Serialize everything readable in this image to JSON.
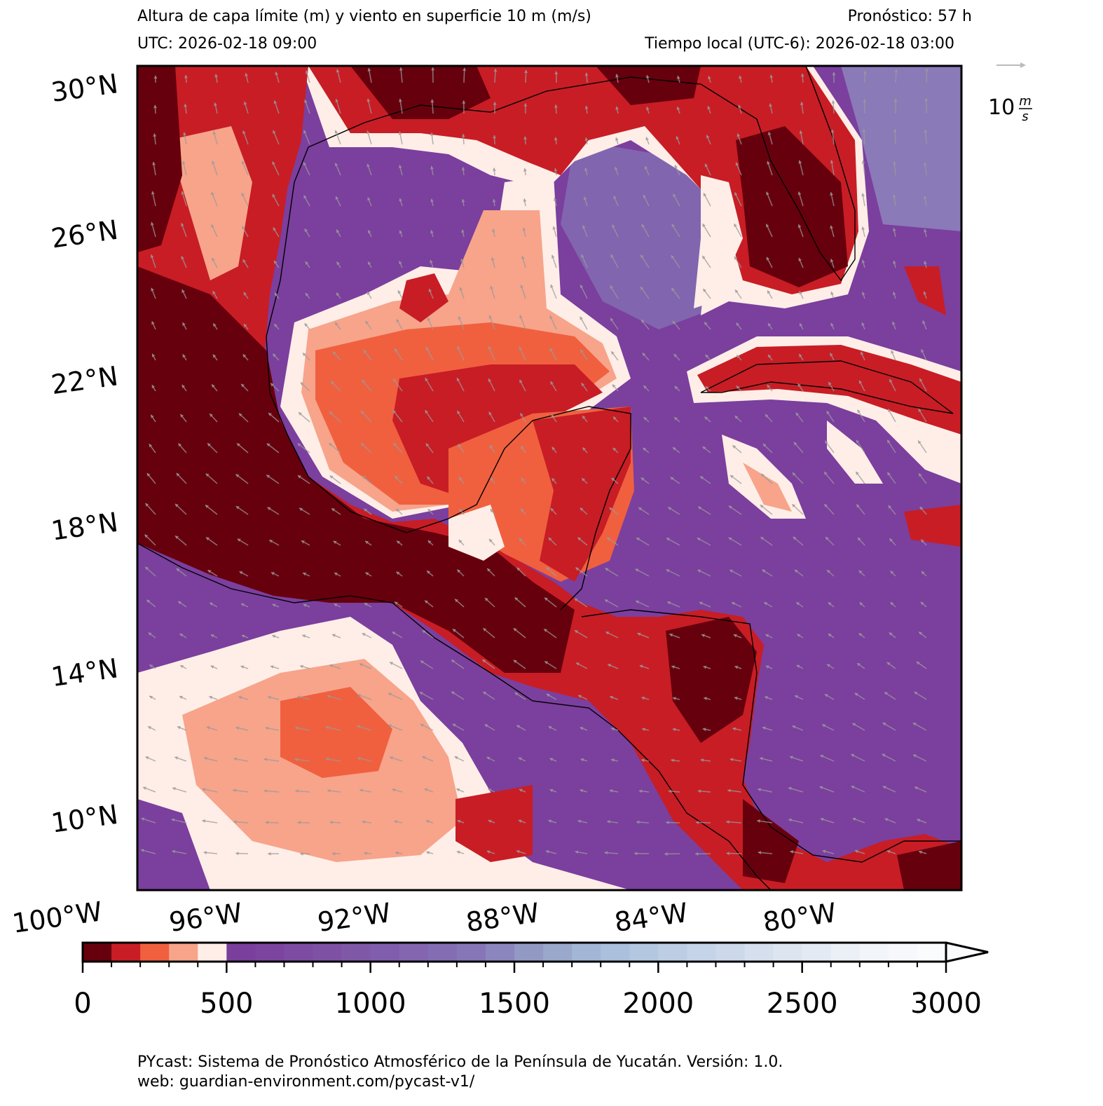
{
  "header": {
    "title": "Altura de capa límite (m) y viento en superficie 10 m (m/s)",
    "forecast": "Pronóstico: 57 h",
    "utc": "UTC:  2026-02-18 09:00",
    "local": "Tiempo local (UTC-6): 2026-02-18 03:00"
  },
  "map": {
    "lat_range": [
      7.9,
      30.46
    ],
    "lon_range": [
      -98.9,
      -76.7
    ],
    "lat_ticks": [
      {
        "value": 30,
        "label": "30°N"
      },
      {
        "value": 26,
        "label": "26°N"
      },
      {
        "value": 22,
        "label": "22°N"
      },
      {
        "value": 18,
        "label": "18°N"
      },
      {
        "value": 14,
        "label": "14°N"
      },
      {
        "value": 10,
        "label": "10°N"
      }
    ],
    "lon_ticks": [
      {
        "value": -100,
        "label": "100°W"
      },
      {
        "value": -96,
        "label": "96°W"
      },
      {
        "value": -92,
        "label": "92°W"
      },
      {
        "value": -88,
        "label": "88°W"
      },
      {
        "value": -84,
        "label": "84°W"
      },
      {
        "value": -80,
        "label": "80°W"
      }
    ],
    "wind_key": {
      "label": "10",
      "unit_num": "m",
      "unit_den": "s"
    }
  },
  "colorbar": {
    "lim": [
      0,
      3000
    ],
    "ticks": [
      0,
      500,
      1000,
      1500,
      2000,
      2500,
      3000
    ],
    "extend": "max",
    "colors": [
      "#67000d",
      "#c81d25",
      "#f0603f",
      "#f7a48b",
      "#feeee7",
      "#7a3e9d",
      "#7c449f",
      "#7e4ba2",
      "#7f51a5",
      "#8058a8",
      "#815ead",
      "#8365b0",
      "#846db3",
      "#8676b7",
      "#8b86bd",
      "#929ac4",
      "#9aa8cc",
      "#a3b6d6",
      "#aac0dc",
      "#b3c7e0",
      "#bccde4",
      "#c5d4e8",
      "#cdd9eb",
      "#d5dfee",
      "#dde5f1",
      "#e4eaf4",
      "#ebf0f7",
      "#f2f5f9",
      "#f6f8fb",
      "#fafbfd"
    ]
  },
  "footer": {
    "line1": "PYcast: Sistema de Pronóstico Atmosférico de la Península de Yucatán. Versión: 1.0.",
    "line2": "web: guardian-environment.com/pycast-v1/"
  }
}
